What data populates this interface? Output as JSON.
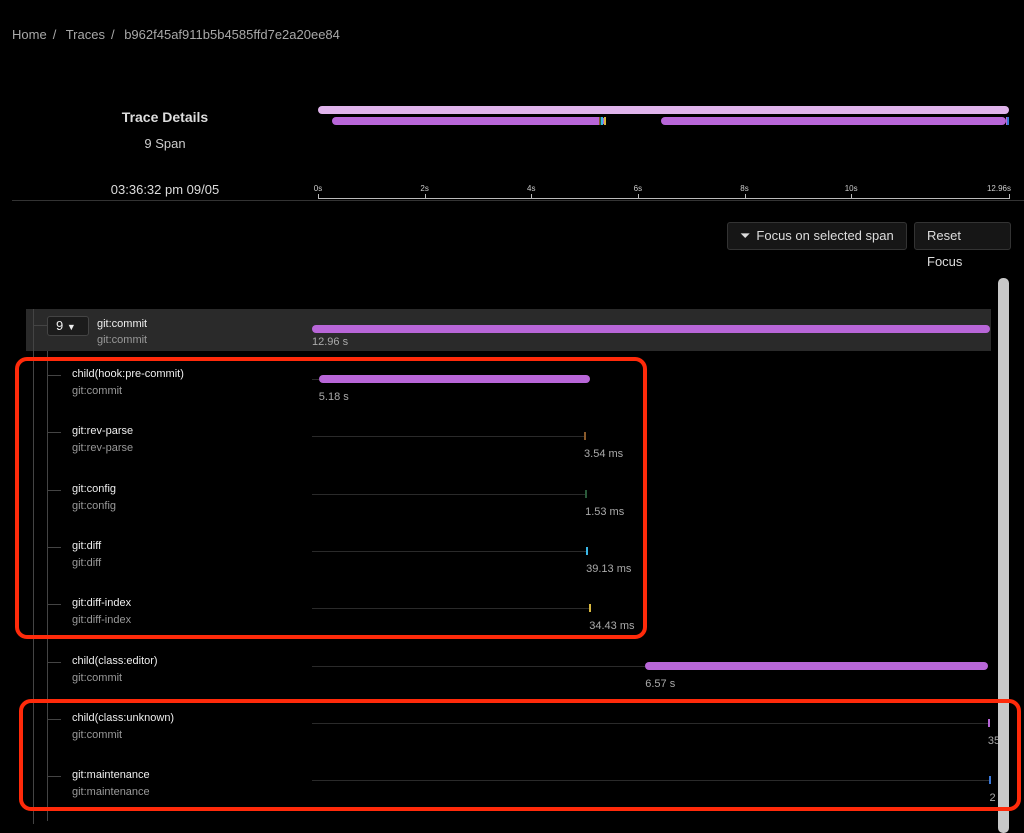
{
  "breadcrumb": {
    "items": [
      "Home",
      "Traces",
      "b962f45af911b5b4585ffd7e2a20ee84"
    ]
  },
  "header": {
    "title": "Trace Details",
    "span_count": "9 Span",
    "timestamp": "03:36:32 pm 09/05"
  },
  "timeline": {
    "max_s": 12.96,
    "ticks": [
      {
        "v": 0,
        "label": "0s"
      },
      {
        "v": 2,
        "label": "2s"
      },
      {
        "v": 4,
        "label": "4s"
      },
      {
        "v": 6,
        "label": "6s"
      },
      {
        "v": 8,
        "label": "8s"
      },
      {
        "v": 10,
        "label": "10s"
      },
      {
        "v": 12.96,
        "label": "12.96s"
      }
    ]
  },
  "toolbar": {
    "focus_label": "Focus on selected span",
    "reset_label": "Reset Focus"
  },
  "root": {
    "count": "9",
    "name": "git:commit",
    "service": "git:commit",
    "duration": "12.96 s",
    "start": 0,
    "end": 12.96,
    "color": "#b866d8"
  },
  "spans": [
    {
      "name": "child(hook:pre-commit)",
      "service": "git:commit",
      "duration": "5.18 s",
      "start": 0.13,
      "end": 5.31,
      "color": "#b866d8"
    },
    {
      "name": "git:rev-parse",
      "service": "git:rev-parse",
      "duration": "3.54 ms",
      "start": 5.2,
      "end": 5.2035,
      "color": "#8a5a2a"
    },
    {
      "name": "git:config",
      "service": "git:config",
      "duration": "1.53 ms",
      "start": 5.22,
      "end": 5.2215,
      "color": "#2a5a3a"
    },
    {
      "name": "git:diff",
      "service": "git:diff",
      "duration": "39.13 ms",
      "start": 5.24,
      "end": 5.28,
      "color": "#3ab8e8"
    },
    {
      "name": "git:diff-index",
      "service": "git:diff-index",
      "duration": "34.43 ms",
      "start": 5.3,
      "end": 5.33,
      "color": "#d8b840"
    },
    {
      "name": "child(class:editor)",
      "service": "git:commit",
      "duration": "6.57 s",
      "start": 6.37,
      "end": 12.93,
      "color": "#b866d8"
    },
    {
      "name": "child(class:unknown)",
      "service": "git:commit",
      "duration": "35",
      "start": 12.92,
      "end": 12.95,
      "color": "#b866d8"
    },
    {
      "name": "git:maintenance",
      "service": "git:maintenance",
      "duration": "2",
      "start": 12.95,
      "end": 12.96,
      "color": "#3a78d8"
    }
  ],
  "colors": {
    "minimap_root": "#e0b4ec",
    "accent": "#b866d8",
    "annotation": "#ff2a0a"
  }
}
